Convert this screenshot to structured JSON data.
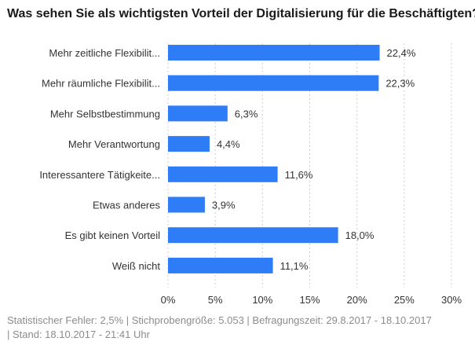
{
  "title": "Was sehen Sie als wichtigsten Vorteil der Digitalisierung für die Beschäftigten?",
  "footer": {
    "line1": "Statistischer Fehler: 2,5% | Stichprobengröße: 5.053 | Befragungszeit: 29.8.2017 - 18.10.2017",
    "line2": "| Stand: 18.10.2017 - 21:41 Uhr"
  },
  "colors": {
    "bar": "#2e7cf6",
    "grid": "#cfcfcf",
    "text": "#333333"
  },
  "chart_data": {
    "type": "bar",
    "orientation": "horizontal",
    "title": "Was sehen Sie als wichtigsten Vorteil der Digitalisierung für die Beschäftigten?",
    "categories": [
      "Mehr zeitliche Flexibilit...",
      "Mehr räumliche Flexibilit...",
      "Mehr Selbstbestimmung",
      "Mehr Verantwortung",
      "Interessantere Tätigkeite...",
      "Etwas anderes",
      "Es gibt keinen Vorteil",
      "Weiß nicht"
    ],
    "values": [
      22.4,
      22.3,
      6.3,
      4.4,
      11.6,
      3.9,
      18.0,
      11.1
    ],
    "value_labels": [
      "22,4%",
      "22,3%",
      "6,3%",
      "4,4%",
      "11,6%",
      "3,9%",
      "18,0%",
      "11,1%"
    ],
    "xlim": [
      0,
      30
    ],
    "xticks": [
      0,
      5,
      10,
      15,
      20,
      25,
      30
    ],
    "xtick_labels": [
      "0%",
      "5%",
      "10%",
      "15%",
      "20%",
      "25%",
      "30%"
    ],
    "grid": true
  }
}
